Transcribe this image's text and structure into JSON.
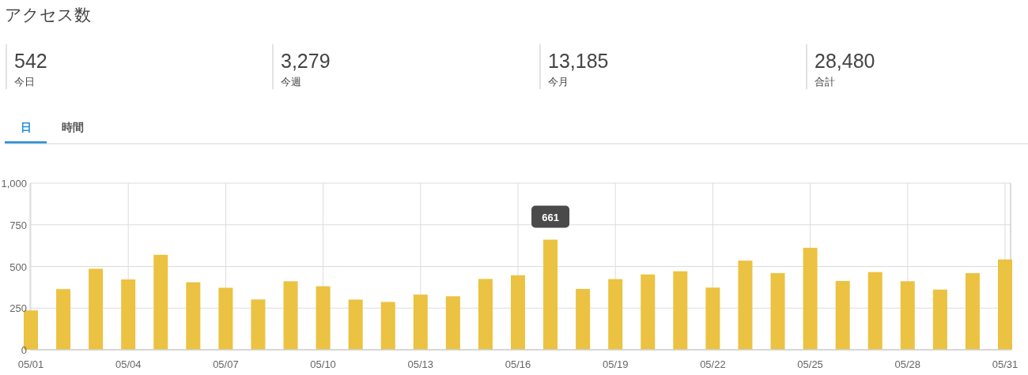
{
  "chart_data": {
    "type": "bar",
    "title": "アクセス数",
    "annotations": [
      "542",
      "今日",
      "3,279",
      "今週",
      "13,185",
      "今月",
      "28,480",
      "合計",
      "日",
      "時間"
    ],
    "categories": [
      "05/01",
      null,
      null,
      "05/04",
      null,
      null,
      "05/07",
      null,
      null,
      "05/10",
      null,
      null,
      "05/13",
      null,
      null,
      "05/16",
      null,
      null,
      "05/19",
      null,
      null,
      "05/22",
      null,
      null,
      "05/25",
      null,
      null,
      "05/28",
      null,
      null,
      "05/31"
    ],
    "values": [
      236,
      364,
      486,
      422,
      570,
      405,
      372,
      302,
      411,
      381,
      301,
      287,
      331,
      321,
      425,
      447,
      661,
      365,
      424,
      452,
      471,
      373,
      535,
      460,
      612,
      413,
      466,
      411,
      361,
      460,
      542
    ],
    "value_labels": [
      null,
      null,
      null,
      null,
      null,
      null,
      null,
      null,
      null,
      null,
      null,
      null,
      null,
      null,
      null,
      null,
      "661",
      null,
      null,
      null,
      null,
      null,
      null,
      null,
      null,
      null,
      null,
      null,
      null,
      null,
      null
    ],
    "color": "#ebc241",
    "ylim": [
      0,
      1000
    ],
    "yticks": [
      0,
      250,
      500,
      750,
      {
        "value": 1000,
        "label": "1,000"
      }
    ],
    "grid": true
  }
}
